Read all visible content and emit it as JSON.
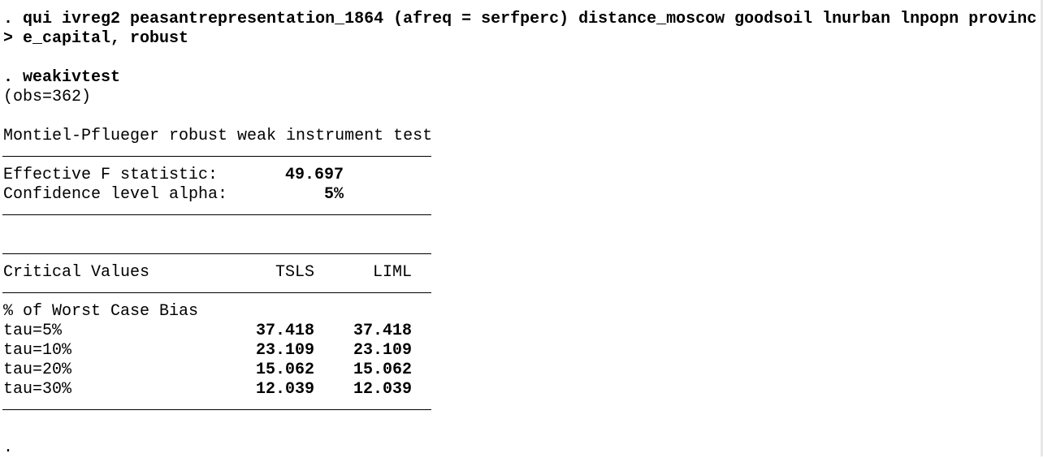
{
  "command": {
    "line1": ". qui ivreg2 peasantrepresentation_1864 (afreq = serfperc) distance_moscow goodsoil lnurban lnpopn provinc",
    "line2": "> e_capital, robust"
  },
  "weakivtest_cmd": ". weakivtest",
  "obs": "(obs=362)",
  "test_title": "Montiel-Pflueger robust weak instrument test",
  "stats": {
    "effective_f_label": "Effective F statistic:",
    "effective_f_value": "49.697",
    "alpha_label": "Confidence level alpha:",
    "alpha_value": "5%"
  },
  "critical_values": {
    "header": "Critical Values",
    "col_tsls": "TSLS",
    "col_liml": "LIML",
    "subheader": "% of Worst Case Bias",
    "rows": [
      {
        "label": "tau=5%",
        "tsls": "37.418",
        "liml": "37.418"
      },
      {
        "label": "tau=10%",
        "tsls": "23.109",
        "liml": "23.109"
      },
      {
        "label": "tau=20%",
        "tsls": "15.062",
        "liml": "15.062"
      },
      {
        "label": "tau=30%",
        "tsls": "12.039",
        "liml": "12.039"
      }
    ]
  },
  "prompt": "."
}
